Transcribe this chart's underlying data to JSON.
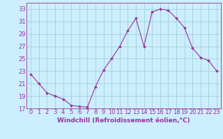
{
  "x": [
    0,
    1,
    2,
    3,
    4,
    5,
    6,
    7,
    8,
    9,
    10,
    11,
    12,
    13,
    14,
    15,
    16,
    17,
    18,
    19,
    20,
    21,
    22,
    23
  ],
  "y": [
    22.5,
    21.0,
    19.5,
    19.0,
    18.5,
    17.5,
    17.3,
    17.2,
    20.5,
    23.2,
    25.0,
    27.0,
    29.5,
    31.5,
    27.0,
    32.5,
    33.0,
    32.8,
    31.5,
    30.0,
    26.7,
    25.2,
    24.7,
    23.0
  ],
  "line_color": "#993399",
  "marker_color": "#993399",
  "bg_color": "#cceeff",
  "grid_color": "#99cccc",
  "xlabel": "Windchill (Refroidissement éolien,°C)",
  "ylim": [
    17,
    34
  ],
  "xlim": [
    -0.5,
    23.5
  ],
  "yticks": [
    17,
    19,
    21,
    23,
    25,
    27,
    29,
    31,
    33
  ],
  "xticks": [
    0,
    1,
    2,
    3,
    4,
    5,
    6,
    7,
    8,
    9,
    10,
    11,
    12,
    13,
    14,
    15,
    16,
    17,
    18,
    19,
    20,
    21,
    22,
    23
  ],
  "font_color": "#993399",
  "tick_fontsize": 6,
  "xlabel_fontsize": 6.5,
  "linewidth": 0.8,
  "markersize": 2.0,
  "spine_color": "#993399"
}
